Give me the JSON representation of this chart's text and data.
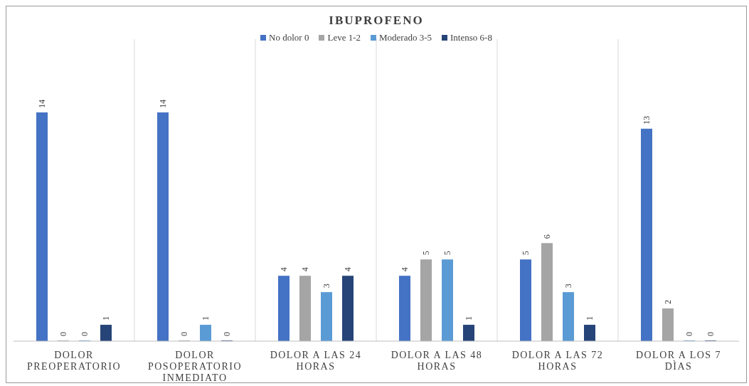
{
  "chart_data": {
    "type": "bar",
    "title": "IBUPROFENO",
    "categories": [
      "DOLOR PREOPERATORIO",
      "DOLOR POSOPERATORIO INMEDIATO",
      "DOLOR A LAS 24 HORAS",
      "DOLOR A LAS 48 HORAS",
      "DOLOR A LAS 72 HORAS",
      "DOLOR A LOS 7 DÌAS"
    ],
    "series": [
      {
        "name": "No dolor 0",
        "color": "#4472c4",
        "values": [
          14,
          14,
          4,
          4,
          5,
          13
        ]
      },
      {
        "name": "Leve 1-2",
        "color": "#a5a5a5",
        "values": [
          0,
          0,
          4,
          5,
          6,
          2
        ]
      },
      {
        "name": "Moderado 3-5",
        "color": "#5b9bd5",
        "values": [
          0,
          1,
          3,
          5,
          3,
          0
        ]
      },
      {
        "name": "Intenso 6-8",
        "color": "#264478",
        "values": [
          1,
          0,
          4,
          1,
          1,
          0
        ]
      }
    ],
    "data_labels": true,
    "grid": "x",
    "legend": "top"
  }
}
